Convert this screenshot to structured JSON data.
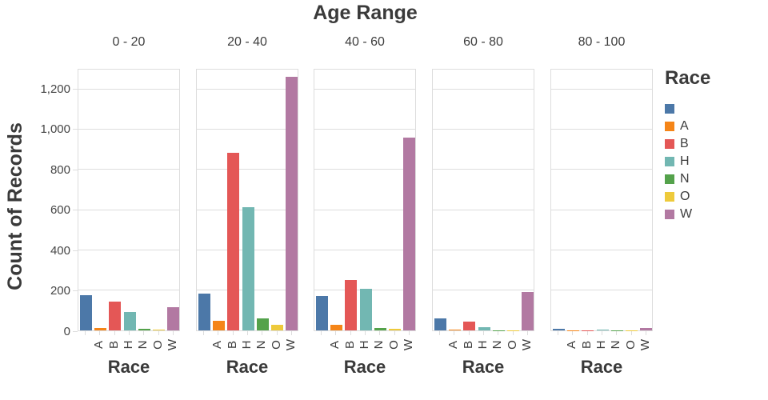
{
  "chart_data": {
    "type": "bar",
    "title": "Age Range",
    "xlabel": "Race",
    "ylabel": "Count of Records",
    "legend_title": "Race",
    "legend_position": "right",
    "grid": true,
    "facets": [
      "0 - 20",
      "20 - 40",
      "40 - 60",
      "60 - 80",
      "80 - 100"
    ],
    "categories": [
      "",
      "A",
      "B",
      "H",
      "N",
      "O",
      "W"
    ],
    "colors": [
      "#4c78a8",
      "#f58518",
      "#e45756",
      "#72b7b2",
      "#54a24b",
      "#eeca3b",
      "#b279a2"
    ],
    "series": [
      {
        "facet": "0 - 20",
        "values": [
          175,
          13,
          145,
          90,
          9,
          6,
          117
        ]
      },
      {
        "facet": "20 - 40",
        "values": [
          182,
          48,
          885,
          615,
          58,
          28,
          1265
        ]
      },
      {
        "facet": "40 - 60",
        "values": [
          172,
          28,
          250,
          207,
          11,
          9,
          963
        ]
      },
      {
        "facet": "60 - 80",
        "values": [
          58,
          6,
          44,
          15,
          2,
          2,
          190
        ]
      },
      {
        "facet": "80 - 100",
        "values": [
          9,
          1,
          2,
          3,
          1,
          1,
          13
        ]
      }
    ],
    "ylim": [
      0,
      1300
    ],
    "yticks": [
      0,
      200,
      400,
      600,
      800,
      1000,
      1200
    ],
    "ytick_labels": [
      "0",
      "200",
      "400",
      "600",
      "800",
      "1,000",
      "1,200"
    ],
    "style": {
      "grid_color": "#dddddd",
      "border_color": "#dddddd",
      "title_color": "#3a3a3a",
      "label_color": "#454545",
      "background": "#ffffff"
    }
  }
}
